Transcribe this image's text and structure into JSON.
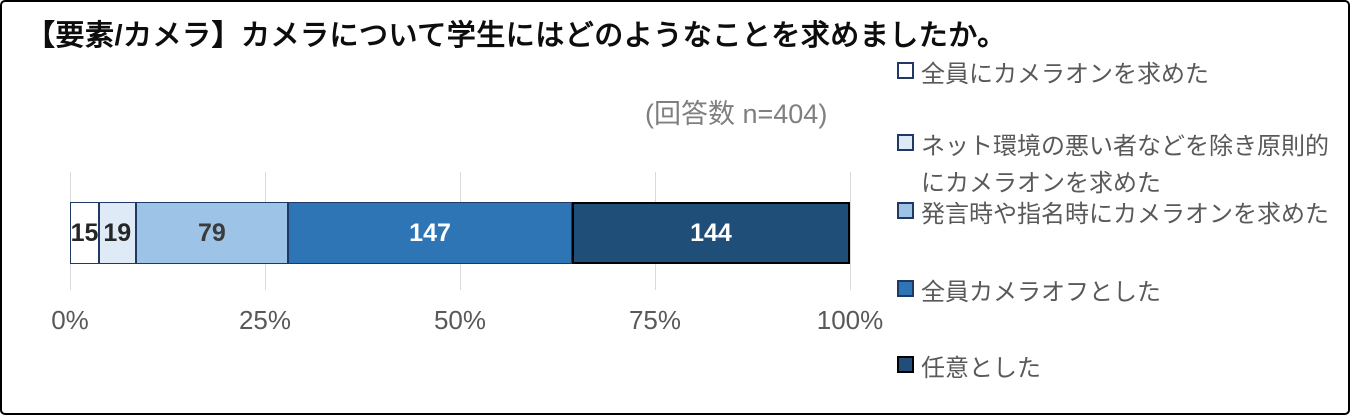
{
  "title": "【要素/カメラ】カメラについて学生にはどのようなことを求めましたか。",
  "response_note": "(回答数 n=404)",
  "chart_data": {
    "type": "bar",
    "variant": "horizontal-stacked-100percent",
    "title": "【要素/カメラ】カメラについて学生にはどのようなことを求めましたか。",
    "annotation": "(回答数 n=404)",
    "total_n": 404,
    "x_ticks": [
      "0%",
      "25%",
      "50%",
      "75%",
      "100%"
    ],
    "xlim_percent": [
      0,
      100
    ],
    "grid": true,
    "legend_position": "right",
    "series": [
      {
        "name": "全員にカメラオンを求めた",
        "value": 15,
        "fill": "#FFFFFF",
        "border": "#1F3864",
        "label_color": "#262626"
      },
      {
        "name": "ネット環境の悪い者などを除き原則的にカメラオンを求めた",
        "value": 19,
        "fill": "#DEEBF7",
        "border": "#1F3864",
        "label_color": "#262626"
      },
      {
        "name": "発言時や指名時にカメラオンを求めた",
        "value": 79,
        "fill": "#9DC3E6",
        "border": "#1F3864",
        "label_color": "#3B3B3B"
      },
      {
        "name": "全員カメラオフとした",
        "value": 147,
        "fill": "#2E75B6",
        "border": "#1F3864",
        "label_color": "#FFFFFF"
      },
      {
        "name": "任意とした",
        "value": 144,
        "fill": "#1F4E79",
        "border": "#000000",
        "label_color": "#FFFFFF"
      }
    ]
  },
  "colors": {
    "gridline": "#D9D9D9",
    "axis_label": "#595959",
    "legend_text": "#595959",
    "note_text": "#7F7F7F",
    "frame_border": "#000000"
  }
}
